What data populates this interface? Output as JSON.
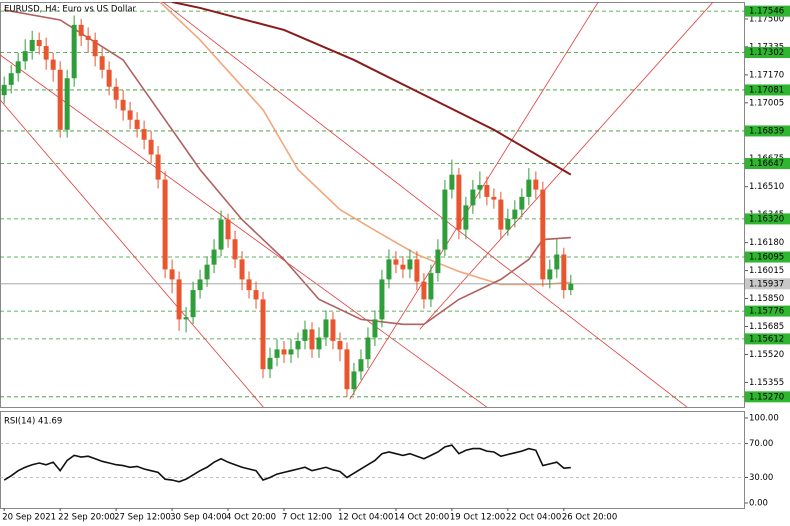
{
  "chart_data": {
    "type": "candlestick",
    "title": "EURUSD, H4: Euro vs US Dollar",
    "categories": [
      "20 Sep 2021",
      null,
      null,
      null,
      null,
      null,
      null,
      null,
      "22 Sep 20:00",
      null,
      null,
      null,
      null,
      null,
      null,
      null,
      "27 Sep 12:00",
      null,
      null,
      null,
      null,
      null,
      null,
      null,
      "30 Sep 04:00",
      null,
      null,
      null,
      null,
      null,
      null,
      null,
      "4 Oct 20:00",
      null,
      null,
      null,
      null,
      null,
      null,
      null,
      "7 Oct 12:00",
      null,
      null,
      null,
      null,
      null,
      null,
      null,
      "12 Oct 04:00",
      null,
      null,
      null,
      null,
      null,
      null,
      null,
      "14 Oct 20:00",
      null,
      null,
      null,
      null,
      null,
      null,
      null,
      "19 Oct 12:00",
      null,
      null,
      null,
      null,
      null,
      null,
      null,
      "22 Oct 04:00",
      null,
      null,
      null,
      null,
      null,
      null,
      null,
      "26 Oct 20:00",
      null
    ],
    "open": [
      1.1705,
      1.17111,
      1.1718,
      1.1725,
      1.1731,
      1.17376,
      1.1734,
      1.1726,
      1.172,
      1.16846,
      1.1715,
      1.17465,
      1.174,
      1.17376,
      1.1728,
      1.172,
      1.171,
      1.17023,
      1.1696,
      1.16905,
      1.1685,
      1.16787,
      1.167,
      1.16552,
      1.16022,
      1.15963,
      1.15727,
      1.1574,
      1.159,
      1.15963,
      1.1605,
      1.16139,
      1.16316,
      1.162,
      1.16081,
      1.15963,
      1.159,
      1.15845,
      1.15433,
      1.155,
      1.1555,
      1.1552,
      1.1555,
      1.156,
      1.15668,
      1.1555,
      1.1562,
      1.15727,
      1.156,
      1.1555,
      1.15315,
      1.1542,
      1.15492,
      1.1562,
      1.15727,
      1.15963,
      1.16081,
      1.1605,
      1.16022,
      1.16081,
      1.1595,
      1.15845,
      1.16,
      1.16139,
      1.16493,
      1.16581,
      1.16257,
      1.164,
      1.16493,
      1.1652,
      1.1645,
      1.16434,
      1.16257,
      1.1632,
      1.16375,
      1.1645,
      1.16552,
      1.16493,
      1.15963,
      1.16022,
      1.1611,
      1.159
    ],
    "high": [
      1.1716,
      1.1723,
      1.173,
      1.1738,
      1.1743,
      1.1742,
      1.1739,
      1.173,
      1.1725,
      1.172,
      1.1752,
      1.175,
      1.1745,
      1.1742,
      1.1733,
      1.1725,
      1.1715,
      1.1708,
      1.1701,
      1.1695,
      1.169,
      1.1684,
      1.1675,
      1.166,
      1.1608,
      1.1601,
      1.158,
      1.1595,
      1.1602,
      1.161,
      1.162,
      1.1637,
      1.1635,
      1.1625,
      1.1613,
      1.1601,
      1.1595,
      1.1589,
      1.1556,
      1.1561,
      1.156,
      1.1561,
      1.1565,
      1.1572,
      1.1571,
      1.1568,
      1.1578,
      1.1577,
      1.1565,
      1.1559,
      1.1547,
      1.1555,
      1.1568,
      1.1578,
      1.1602,
      1.1614,
      1.1613,
      1.161,
      1.1614,
      1.1613,
      1.16,
      1.1605,
      1.162,
      1.1655,
      1.1667,
      1.1662,
      1.1645,
      1.1655,
      1.166,
      1.1657,
      1.165,
      1.1648,
      1.1638,
      1.1643,
      1.165,
      1.1662,
      1.166,
      1.1654,
      1.1608,
      1.162,
      1.1615,
      1.1599
    ],
    "low": [
      1.17,
      1.1706,
      1.1713,
      1.172,
      1.1726,
      1.1729,
      1.172,
      1.1713,
      1.168,
      1.168,
      1.171,
      1.1734,
      1.173,
      1.1722,
      1.1715,
      1.1705,
      1.1697,
      1.169,
      1.1685,
      1.168,
      1.1673,
      1.1665,
      1.165,
      1.1597,
      1.1588,
      1.1566,
      1.1565,
      1.157,
      1.1585,
      1.1592,
      1.16,
      1.161,
      1.1615,
      1.1603,
      1.159,
      1.1585,
      1.1579,
      1.1538,
      1.1538,
      1.1545,
      1.1547,
      1.1547,
      1.155,
      1.1555,
      1.155,
      1.155,
      1.1557,
      1.1555,
      1.1548,
      1.1527,
      1.1528,
      1.1537,
      1.1544,
      1.1557,
      1.1568,
      1.1591,
      1.16,
      1.1597,
      1.1597,
      1.159,
      1.1579,
      1.158,
      1.1595,
      1.161,
      1.1644,
      1.162,
      1.162,
      1.1635,
      1.1644,
      1.164,
      1.1638,
      1.162,
      1.1622,
      1.1627,
      1.1633,
      1.164,
      1.1644,
      1.1592,
      1.1591,
      1.1597,
      1.1585,
      1.1587
    ],
    "close": [
      1.17111,
      1.1718,
      1.1725,
      1.1731,
      1.17376,
      1.1734,
      1.1726,
      1.172,
      1.16846,
      1.1715,
      1.17465,
      1.174,
      1.17376,
      1.1728,
      1.172,
      1.171,
      1.17023,
      1.1696,
      1.16905,
      1.1685,
      1.16787,
      1.167,
      1.16552,
      1.16022,
      1.15963,
      1.15727,
      1.1574,
      1.159,
      1.15963,
      1.1605,
      1.16139,
      1.16316,
      1.162,
      1.16081,
      1.15963,
      1.159,
      1.15845,
      1.15433,
      1.155,
      1.1555,
      1.1552,
      1.1555,
      1.156,
      1.15668,
      1.1555,
      1.1562,
      1.15727,
      1.156,
      1.1555,
      1.15315,
      1.1542,
      1.15492,
      1.1562,
      1.15727,
      1.15963,
      1.16081,
      1.1605,
      1.16022,
      1.16081,
      1.1595,
      1.15845,
      1.16,
      1.16139,
      1.16493,
      1.16581,
      1.16257,
      1.164,
      1.16493,
      1.1652,
      1.1645,
      1.16434,
      1.16257,
      1.1632,
      1.16375,
      1.1645,
      1.16552,
      1.16493,
      1.15963,
      1.16022,
      1.1611,
      1.159,
      1.15937
    ],
    "colors": {
      "up": "#2f9e3a",
      "down": "#e9552e"
    },
    "xlim": [
      -0.6,
      105.9
    ],
    "ylim": [
      1.1521,
      1.176
    ],
    "yticks": [
      {
        "value": 1.175,
        "label": "1.17500"
      },
      1.17335,
      {
        "value": 1.1717,
        "label": "1.17170"
      },
      1.17005,
      1.16675,
      {
        "value": 1.1651,
        "label": "1.16510"
      },
      1.16345,
      {
        "value": 1.1618,
        "label": "1.16180"
      },
      1.16015,
      {
        "value": 1.1585,
        "label": "1.15850"
      },
      1.15685,
      {
        "value": 1.1552,
        "label": "1.15520"
      },
      1.15355
    ],
    "levels": {
      "color": "#2e9a2e",
      "values": [
        1.17546,
        1.17302,
        1.17081,
        1.16839,
        1.16647,
        1.1632,
        1.16095,
        1.15776,
        1.15612,
        1.1527
      ],
      "value_labels": [
        "1.17546",
        "1.17302",
        "1.17081",
        "1.16839",
        "1.16647",
        "1.16320",
        "1.16095",
        "1.15776",
        "1.15612",
        "1.15270"
      ]
    },
    "current_price": 1.15937,
    "moving_averages": [
      {
        "color": "#8b1a1a",
        "x": [
          24,
          28,
          40,
          50,
          60,
          70,
          81
        ],
        "values": [
          1.176,
          1.17565,
          1.17435,
          1.17258,
          1.17052,
          1.16846,
          1.16581
        ]
      },
      {
        "color": "#f2a77a",
        "x": [
          22,
          28,
          37,
          42,
          48,
          54,
          59,
          65,
          71,
          77,
          81
        ],
        "values": [
          1.1761,
          1.17376,
          1.16964,
          1.16611,
          1.16375,
          1.16228,
          1.1611,
          1.1601,
          1.15933,
          1.15933,
          1.15945
        ]
      },
      {
        "color": "#b0605e",
        "x": [
          0,
          8,
          17,
          22,
          28,
          34,
          40,
          45,
          51,
          57,
          60,
          65,
          71,
          75,
          77,
          81
        ],
        "values": [
          1.17553,
          1.17494,
          1.17258,
          1.16964,
          1.16611,
          1.16316,
          1.16081,
          1.15845,
          1.15727,
          1.15698,
          1.15698,
          1.15845,
          1.15963,
          1.16081,
          1.16198,
          1.1621
        ]
      }
    ],
    "trendlines": [
      {
        "color": "#e23b3b",
        "x": [
          -0.6,
          37.3
        ],
        "values": [
          1.17023,
          1.15197
        ]
      },
      {
        "color": "#e23b3b",
        "x": [
          -0.6,
          69.4
        ],
        "values": [
          1.17288,
          1.15197
        ]
      },
      {
        "color": "#e23b3b",
        "x": [
          22.3,
          98
        ],
        "values": [
          1.17612,
          1.15197
        ]
      },
      {
        "color": "#e23b3b",
        "x": [
          49.4,
          85.1
        ],
        "values": [
          1.15256,
          1.17612
        ]
      },
      {
        "color": "#e23b3b",
        "x": [
          59.4,
          101.6
        ],
        "values": [
          1.15668,
          1.17612
        ]
      }
    ],
    "rsi": {
      "title": "RSI(14) 41.69",
      "values": [
        27,
        32,
        38,
        42,
        45,
        47,
        45,
        48,
        38,
        50,
        56,
        54,
        55,
        52,
        49,
        47,
        45,
        44,
        42,
        43,
        40,
        38,
        36,
        28,
        27,
        25,
        28,
        33,
        38,
        42,
        48,
        52,
        48,
        45,
        42,
        40,
        38,
        27,
        30,
        34,
        36,
        38,
        40,
        42,
        38,
        40,
        42,
        39,
        37,
        30,
        35,
        40,
        45,
        50,
        58,
        60,
        58,
        56,
        58,
        55,
        52,
        56,
        60,
        66,
        68,
        58,
        62,
        64,
        64,
        61,
        60,
        55,
        57,
        59,
        61,
        64,
        62,
        44,
        46,
        48,
        41,
        41.69
      ],
      "ylim": [
        -5.9,
        108.2
      ],
      "yticks": [
        {
          "value": 100,
          "label": "100.00"
        },
        {
          "value": 70,
          "label": "70.00"
        },
        {
          "value": 30,
          "label": "30.00"
        },
        {
          "value": 0,
          "label": "0.00"
        }
      ],
      "levels": [
        70,
        30
      ]
    }
  }
}
